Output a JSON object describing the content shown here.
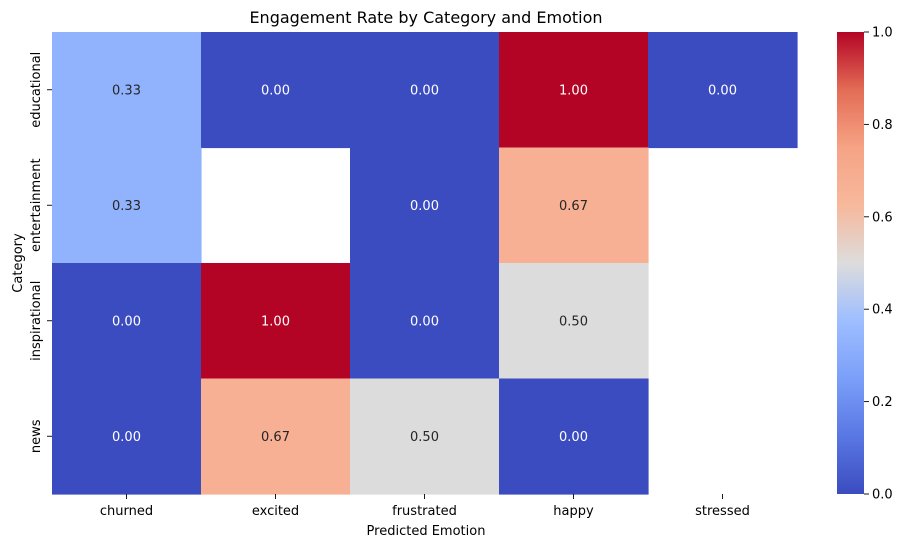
{
  "chart_data": {
    "type": "heatmap",
    "title": "Engagement Rate by Category and Emotion",
    "xlabel": "Predicted Emotion",
    "ylabel": "Category",
    "x_categories": [
      "churned",
      "excited",
      "frustrated",
      "happy",
      "stressed"
    ],
    "y_categories": [
      "educational",
      "entertainment",
      "inspirational",
      "news"
    ],
    "values": [
      [
        0.33,
        0.0,
        0.0,
        1.0,
        0.0
      ],
      [
        0.33,
        null,
        0.0,
        0.67,
        null
      ],
      [
        0.0,
        1.0,
        0.0,
        0.5,
        null
      ],
      [
        0.0,
        0.67,
        0.5,
        0.0,
        null
      ]
    ],
    "cell_labels": [
      [
        "0.33",
        "0.00",
        "0.00",
        "1.00",
        "0.00"
      ],
      [
        "0.33",
        "",
        "0.00",
        "0.67",
        ""
      ],
      [
        "0.00",
        "1.00",
        "0.00",
        "0.50",
        ""
      ],
      [
        "0.00",
        "0.67",
        "0.50",
        "0.00",
        ""
      ]
    ],
    "colorbar": {
      "min": 0.0,
      "max": 1.0,
      "ticks": [
        0.0,
        0.2,
        0.4,
        0.6,
        0.8,
        1.0
      ],
      "tick_labels": [
        "0.0",
        "0.2",
        "0.4",
        "0.6",
        "0.8",
        "1.0"
      ],
      "colormap": "coolwarm",
      "colors": [
        "#3b4cc0",
        "#dddcdc",
        "#b40426"
      ]
    },
    "grid": false
  }
}
